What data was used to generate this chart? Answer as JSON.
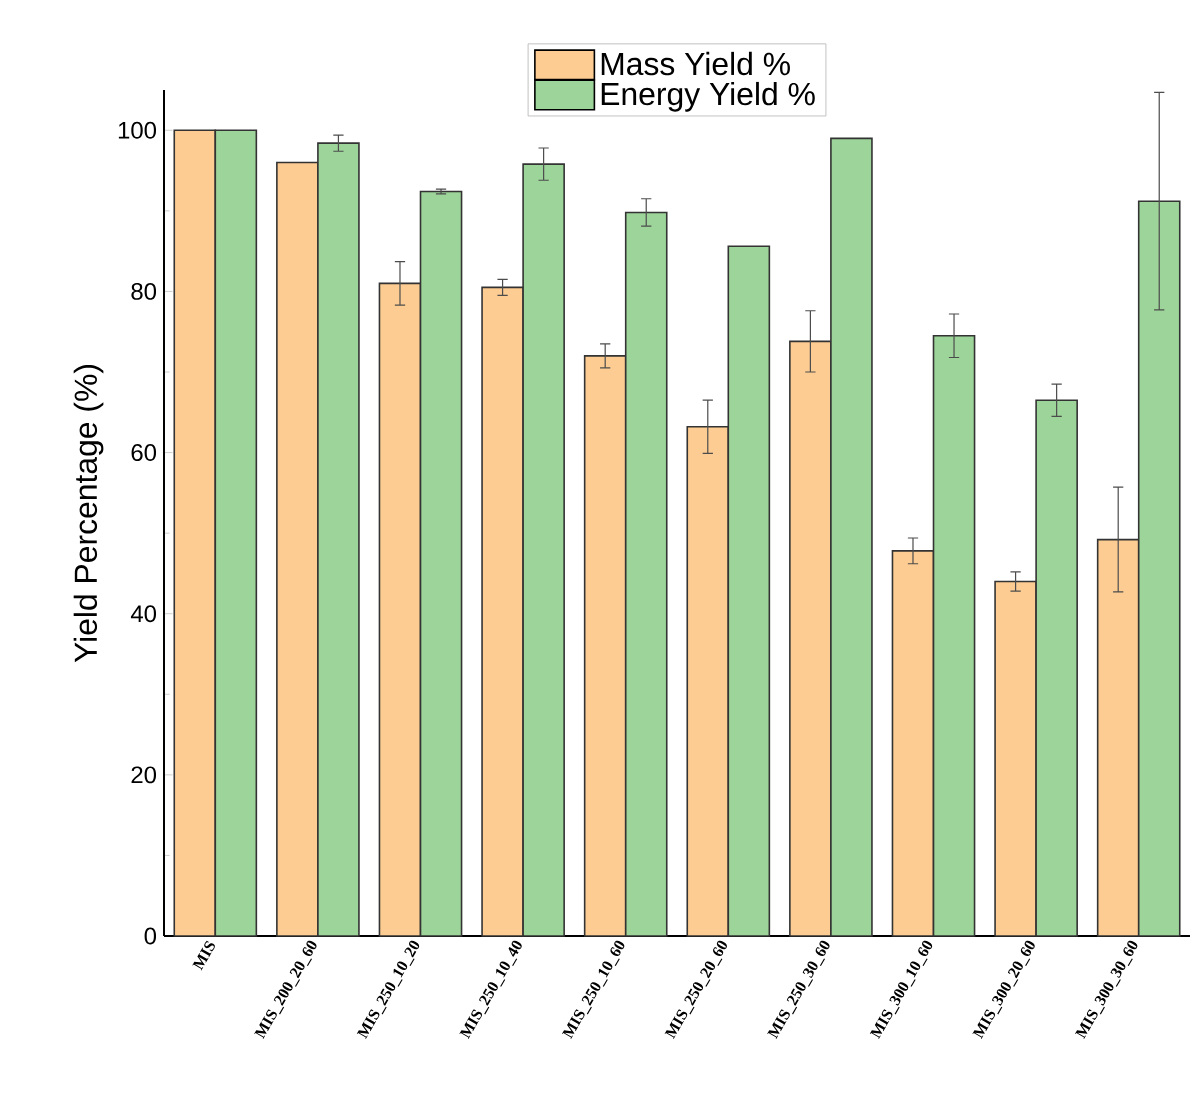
{
  "chart_data": {
    "type": "bar",
    "ylabel": "Yield Percentage (%)",
    "categories": [
      "MIS",
      "MIS_200_20_60",
      "MIS_250_10_20",
      "MIS_250_10_40",
      "MIS_250_10_60",
      "MIS_250_20_60",
      "MIS_250_30_60",
      "MIS_300_10_60",
      "MIS_300_20_60",
      "MIS_300_30_60"
    ],
    "series": [
      {
        "name": "Mass Yield %",
        "color": "#fdcc92",
        "values": [
          100,
          96,
          81,
          80.5,
          72,
          63.2,
          73.8,
          47.8,
          44,
          49.2
        ],
        "errors": [
          null,
          null,
          2.7,
          1.0,
          1.5,
          3.3,
          3.8,
          1.6,
          1.2,
          6.5
        ]
      },
      {
        "name": "Energy Yield %",
        "color": "#9dd49a",
        "values": [
          100,
          98.4,
          92.4,
          95.8,
          89.8,
          85.6,
          99,
          74.5,
          66.5,
          91.2
        ],
        "errors": [
          null,
          1.0,
          0.3,
          2.0,
          1.7,
          null,
          null,
          2.7,
          2.0,
          13.5
        ]
      }
    ],
    "ylim": [
      0,
      105
    ],
    "yticks": [
      0,
      20,
      40,
      60,
      80,
      100
    ],
    "grid": false,
    "legend": "top"
  }
}
